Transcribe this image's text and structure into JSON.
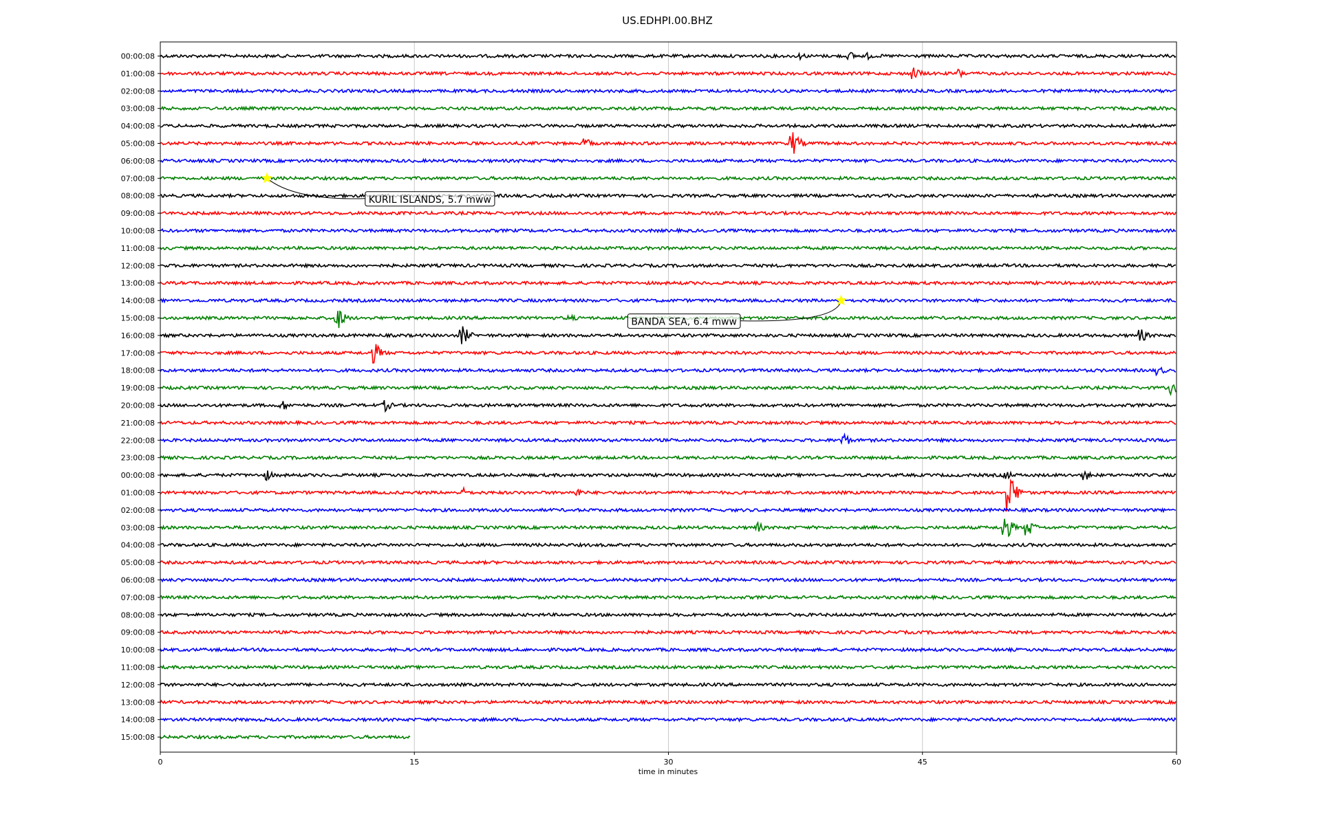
{
  "chart_data": {
    "type": "line",
    "title": "US.EDHPI.00.BHZ",
    "xlabel": "time in minutes",
    "ylabel": "",
    "xlim": [
      0,
      60
    ],
    "x_ticks": [
      "0",
      "15",
      "30",
      "45",
      "60"
    ],
    "x_tick_values": [
      0,
      15,
      30,
      45,
      60
    ],
    "grid": "vertical",
    "row_labels": [
      "00:00:08",
      "01:00:08",
      "02:00:08",
      "03:00:08",
      "04:00:08",
      "05:00:08",
      "06:00:08",
      "07:00:08",
      "08:00:08",
      "09:00:08",
      "10:00:08",
      "11:00:08",
      "12:00:08",
      "13:00:08",
      "14:00:08",
      "15:00:08",
      "16:00:08",
      "17:00:08",
      "18:00:08",
      "19:00:08",
      "20:00:08",
      "21:00:08",
      "22:00:08",
      "23:00:08",
      "00:00:08",
      "01:00:08",
      "02:00:08",
      "03:00:08",
      "04:00:08",
      "05:00:08",
      "06:00:08",
      "07:00:08",
      "08:00:08",
      "09:00:08",
      "10:00:08",
      "11:00:08",
      "12:00:08",
      "13:00:08",
      "14:00:08",
      "15:00:08"
    ],
    "trace_colors": [
      "#000000",
      "#ff0000",
      "#0000ff",
      "#008000"
    ],
    "last_row_end_minute": 14.8,
    "events": [
      {
        "row": 0,
        "minute": 37.9,
        "amp": 5
      },
      {
        "row": 0,
        "minute": 40.8,
        "amp": 6
      },
      {
        "row": 0,
        "minute": 41.8,
        "amp": 5
      },
      {
        "row": 1,
        "minute": 44.6,
        "amp": 9
      },
      {
        "row": 1,
        "minute": 47.2,
        "amp": 7
      },
      {
        "row": 5,
        "minute": 25.2,
        "amp": 7
      },
      {
        "row": 5,
        "minute": 37.4,
        "amp": 17
      },
      {
        "row": 15,
        "minute": 10.5,
        "amp": 17
      },
      {
        "row": 15,
        "minute": 24.3,
        "amp": 5
      },
      {
        "row": 16,
        "minute": 17.9,
        "amp": 14
      },
      {
        "row": 16,
        "minute": 58.0,
        "amp": 9
      },
      {
        "row": 17,
        "minute": 12.7,
        "amp": 15
      },
      {
        "row": 18,
        "minute": 59.0,
        "amp": 7
      },
      {
        "row": 19,
        "minute": 59.8,
        "amp": 10
      },
      {
        "row": 20,
        "minute": 13.3,
        "amp": 9
      },
      {
        "row": 20,
        "minute": 7.3,
        "amp": 7
      },
      {
        "row": 22,
        "minute": 40.4,
        "amp": 10
      },
      {
        "row": 24,
        "minute": 6.3,
        "amp": 8
      },
      {
        "row": 24,
        "minute": 50.0,
        "amp": 7
      },
      {
        "row": 24,
        "minute": 54.7,
        "amp": 7
      },
      {
        "row": 25,
        "minute": 50.2,
        "amp": 28
      },
      {
        "row": 25,
        "minute": 18.0,
        "amp": 7
      },
      {
        "row": 25,
        "minute": 24.7,
        "amp": 6
      },
      {
        "row": 27,
        "minute": 35.3,
        "amp": 8
      },
      {
        "row": 27,
        "minute": 49.9,
        "amp": 20
      },
      {
        "row": 27,
        "minute": 51.3,
        "amp": 12
      }
    ],
    "annotations": [
      {
        "label": "KURIL ISLANDS, 5.7 mww",
        "row": 7,
        "minute": 6.3,
        "box_row": 8.2,
        "box_minute": 12.3
      },
      {
        "label": "BANDA SEA, 6.4 mww",
        "row": 14,
        "minute": 40.2,
        "box_row": 15.2,
        "box_minute": 27.8
      }
    ]
  }
}
